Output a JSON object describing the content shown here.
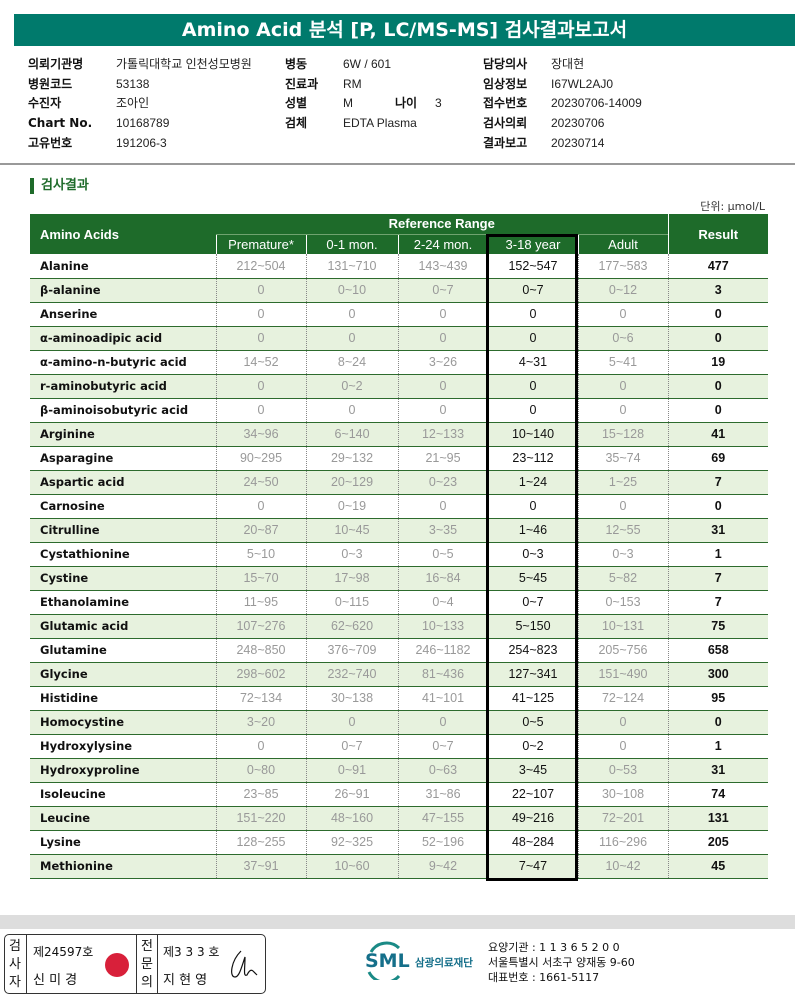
{
  "title": "Amino Acid 분석 [P, LC/MS-MS] 검사결과보고서",
  "info": [
    {
      "label": "의뢰기관명",
      "value": "가톨릭대학교 인천성모병원"
    },
    {
      "label": "병원코드",
      "value": "53138"
    },
    {
      "label": "수진자",
      "value": "조아인"
    },
    {
      "label": "Chart No.",
      "value": "10168789"
    },
    {
      "label": "고유번호",
      "value": "191206-3"
    },
    {
      "label": "병동",
      "value": "6W / 601"
    },
    {
      "label": "진료과",
      "value": "RM"
    },
    {
      "label": "성별",
      "value": "M"
    },
    {
      "label": "나이",
      "value": "3"
    },
    {
      "label": "검체",
      "value": "EDTA Plasma"
    },
    {
      "label": "담당의사",
      "value": "장대현"
    },
    {
      "label": "임상정보",
      "value": "I67WL2AJ0"
    },
    {
      "label": "접수번호",
      "value": "20230706-14009"
    },
    {
      "label": "검사의뢰",
      "value": "20230706"
    },
    {
      "label": "결과보고",
      "value": "20230714"
    }
  ],
  "section_title": "검사결과",
  "unit": "단위: μmol/L",
  "table": {
    "headers": {
      "name": "Amino Acids",
      "reference": "Reference Range",
      "result": "Result",
      "ranges": [
        "Premature*",
        "0-1 mon.",
        "2-24 mon.",
        "3-18 year",
        "Adult"
      ]
    },
    "highlighted_column": "3-18 year",
    "rows": [
      [
        "Alanine",
        "212~504",
        "131~710",
        "143~439",
        "152~547",
        "177~583",
        "477"
      ],
      [
        "β-alanine",
        "0",
        "0~10",
        "0~7",
        "0~7",
        "0~12",
        "3"
      ],
      [
        "Anserine",
        "0",
        "0",
        "0",
        "0",
        "0",
        "0"
      ],
      [
        "α-aminoadipic acid",
        "0",
        "0",
        "0",
        "0",
        "0~6",
        "0"
      ],
      [
        "α-amino-n-butyric acid",
        "14~52",
        "8~24",
        "3~26",
        "4~31",
        "5~41",
        "19"
      ],
      [
        "r-aminobutyric acid",
        "0",
        "0~2",
        "0",
        "0",
        "0",
        "0"
      ],
      [
        "β-aminoisobutyric acid",
        "0",
        "0",
        "0",
        "0",
        "0",
        "0"
      ],
      [
        "Arginine",
        "34~96",
        "6~140",
        "12~133",
        "10~140",
        "15~128",
        "41"
      ],
      [
        "Asparagine",
        "90~295",
        "29~132",
        "21~95",
        "23~112",
        "35~74",
        "69"
      ],
      [
        "Aspartic acid",
        "24~50",
        "20~129",
        "0~23",
        "1~24",
        "1~25",
        "7"
      ],
      [
        "Carnosine",
        "0",
        "0~19",
        "0",
        "0",
        "0",
        "0"
      ],
      [
        "Citrulline",
        "20~87",
        "10~45",
        "3~35",
        "1~46",
        "12~55",
        "31"
      ],
      [
        "Cystathionine",
        "5~10",
        "0~3",
        "0~5",
        "0~3",
        "0~3",
        "1"
      ],
      [
        "Cystine",
        "15~70",
        "17~98",
        "16~84",
        "5~45",
        "5~82",
        "7"
      ],
      [
        "Ethanolamine",
        "11~95",
        "0~115",
        "0~4",
        "0~7",
        "0~153",
        "7"
      ],
      [
        "Glutamic acid",
        "107~276",
        "62~620",
        "10~133",
        "5~150",
        "10~131",
        "75"
      ],
      [
        "Glutamine",
        "248~850",
        "376~709",
        "246~1182",
        "254~823",
        "205~756",
        "658"
      ],
      [
        "Glycine",
        "298~602",
        "232~740",
        "81~436",
        "127~341",
        "151~490",
        "300"
      ],
      [
        "Histidine",
        "72~134",
        "30~138",
        "41~101",
        "41~125",
        "72~124",
        "95"
      ],
      [
        "Homocystine",
        "3~20",
        "0",
        "0",
        "0~5",
        "0",
        "0"
      ],
      [
        "Hydroxylysine",
        "0",
        "0~7",
        "0~7",
        "0~2",
        "0",
        "1"
      ],
      [
        "Hydroxyproline",
        "0~80",
        "0~91",
        "0~63",
        "3~45",
        "0~53",
        "31"
      ],
      [
        "Isoleucine",
        "23~85",
        "26~91",
        "31~86",
        "22~107",
        "30~108",
        "74"
      ],
      [
        "Leucine",
        "151~220",
        "48~160",
        "47~155",
        "49~216",
        "72~201",
        "131"
      ],
      [
        "Lysine",
        "128~255",
        "92~325",
        "52~196",
        "48~284",
        "116~296",
        "205"
      ],
      [
        "Methionine",
        "37~91",
        "10~60",
        "9~42",
        "7~47",
        "10~42",
        "45"
      ]
    ]
  },
  "footer": {
    "tester_label": "검사자",
    "tester_no": "제24597호",
    "tester_name": "신 미 경",
    "doctor_label": "전문의",
    "doctor_no": "제3 3 3 호",
    "doctor_name": "지 현 영",
    "logo_text": "SML",
    "org_name": "삼광의료재단",
    "org_lines": [
      "요양기관 : 1 1 3 6 5 2 0 0",
      "서울특별시 서초구 양재동 9-60",
      "대표번호 : 1661-5117"
    ]
  },
  "colors": {
    "title_bar": "#007a6c",
    "table_header": "#1e6b2a",
    "alt_row": "#e7f2de"
  }
}
